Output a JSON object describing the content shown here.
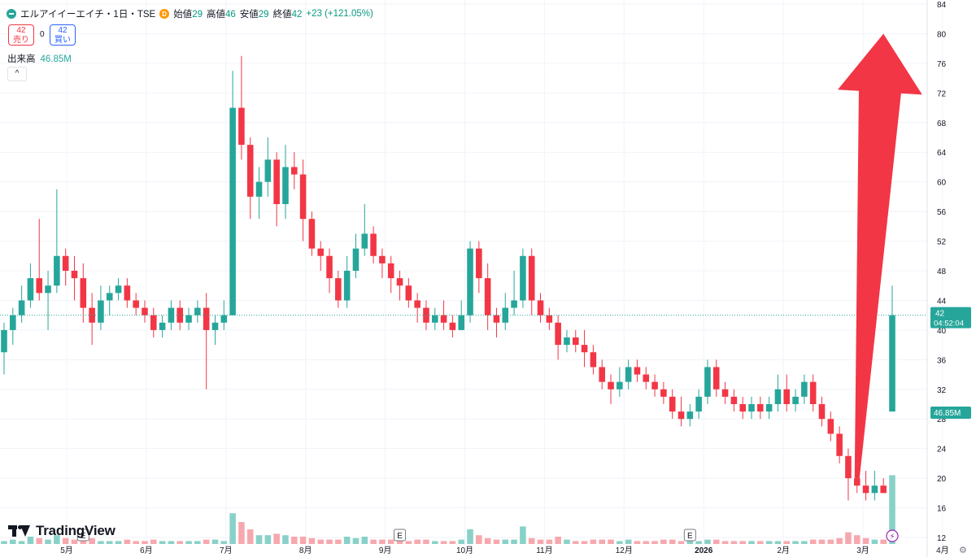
{
  "header": {
    "symbol": "エルアイイーエイチ・1日・TSE",
    "badge": "D",
    "open_label": "始値",
    "open": "29",
    "high_label": "高値",
    "high": "46",
    "low_label": "安値",
    "low": "29",
    "close_label": "終値",
    "close": "42",
    "change": "+23 (+121.05%)"
  },
  "trade": {
    "sell_price": "42",
    "sell_label": "売り",
    "spread": "0",
    "buy_price": "42",
    "buy_label": "買い"
  },
  "volume_legend": {
    "label": "出来高",
    "value": "46.85M"
  },
  "collapse_button": "^",
  "price_label": {
    "value": "42",
    "countdown": "04:52:04"
  },
  "volume_label": "46.85M",
  "branding": "TradingView",
  "colors": {
    "up": "#26a69a",
    "down": "#f23645",
    "up_vol": "#89d1c8",
    "down_vol": "#f7a8ae",
    "arrow": "#f23645"
  },
  "chart_data": {
    "type": "candlestick",
    "y_axis": {
      "ticks": [
        84,
        80,
        76,
        72,
        68,
        64,
        60,
        56,
        52,
        48,
        44,
        40,
        36,
        32,
        28,
        24,
        20,
        16,
        12
      ],
      "min": 12,
      "max": 84
    },
    "x_axis": {
      "ticks": [
        "5月",
        "6月",
        "7月",
        "8月",
        "9月",
        "10月",
        "11月",
        "12月",
        "2026",
        "2月",
        "3月",
        "4月"
      ]
    },
    "last_price": 42,
    "candles": [
      [
        37,
        40,
        41,
        34
      ],
      [
        40,
        42,
        43,
        38
      ],
      [
        42,
        44,
        46,
        41
      ],
      [
        44,
        47,
        49,
        43
      ],
      [
        47,
        45,
        55,
        44
      ],
      [
        45,
        46,
        48,
        40
      ],
      [
        46,
        50,
        59,
        45
      ],
      [
        50,
        48,
        51,
        46
      ],
      [
        48,
        47,
        50,
        44
      ],
      [
        47,
        43,
        49,
        41
      ],
      [
        43,
        41,
        45,
        38
      ],
      [
        41,
        44,
        46,
        40
      ],
      [
        44,
        45,
        46,
        42
      ],
      [
        45,
        46,
        47,
        44
      ],
      [
        46,
        44,
        47,
        43
      ],
      [
        44,
        43,
        45,
        42
      ],
      [
        43,
        42,
        44,
        41
      ],
      [
        42,
        40,
        43,
        39
      ],
      [
        40,
        41,
        42,
        39
      ],
      [
        41,
        43,
        44,
        40
      ],
      [
        43,
        41,
        44,
        40
      ],
      [
        41,
        42,
        43,
        40
      ],
      [
        42,
        43,
        44,
        41
      ],
      [
        43,
        40,
        45,
        32
      ],
      [
        40,
        41,
        42,
        38
      ],
      [
        41,
        42,
        44,
        40
      ],
      [
        42,
        70,
        75,
        42
      ],
      [
        70,
        65,
        77,
        63
      ],
      [
        65,
        58,
        66,
        55
      ],
      [
        58,
        60,
        62,
        55
      ],
      [
        60,
        63,
        66,
        58
      ],
      [
        63,
        57,
        64,
        54
      ],
      [
        57,
        62,
        65,
        55
      ],
      [
        62,
        61,
        64,
        59
      ],
      [
        61,
        55,
        63,
        52
      ],
      [
        55,
        51,
        56,
        50
      ],
      [
        51,
        50,
        52,
        48
      ],
      [
        50,
        47,
        51,
        45
      ],
      [
        47,
        44,
        48,
        43
      ],
      [
        44,
        48,
        50,
        43
      ],
      [
        48,
        51,
        53,
        47
      ],
      [
        51,
        53,
        57,
        50
      ],
      [
        53,
        50,
        54,
        49
      ],
      [
        50,
        49,
        51,
        47
      ],
      [
        49,
        47,
        50,
        45
      ],
      [
        47,
        46,
        48,
        44
      ],
      [
        46,
        44,
        47,
        43
      ],
      [
        44,
        43,
        45,
        41
      ],
      [
        43,
        41,
        44,
        40
      ],
      [
        41,
        42,
        43,
        40
      ],
      [
        42,
        41,
        44,
        40
      ],
      [
        41,
        40,
        42,
        39
      ],
      [
        40,
        42,
        44,
        40
      ],
      [
        42,
        51,
        52,
        41
      ],
      [
        51,
        47,
        52,
        45
      ],
      [
        47,
        42,
        49,
        40
      ],
      [
        42,
        41,
        43,
        39
      ],
      [
        41,
        43,
        45,
        40
      ],
      [
        43,
        44,
        48,
        42
      ],
      [
        44,
        50,
        51,
        43
      ],
      [
        50,
        44,
        51,
        42
      ],
      [
        44,
        42,
        45,
        41
      ],
      [
        42,
        41,
        43,
        40
      ],
      [
        41,
        38,
        42,
        36
      ],
      [
        38,
        39,
        40,
        37
      ],
      [
        39,
        38,
        40,
        37
      ],
      [
        38,
        37,
        40,
        35
      ],
      [
        37,
        35,
        38,
        34
      ],
      [
        35,
        33,
        36,
        32
      ],
      [
        33,
        32,
        34,
        30
      ],
      [
        32,
        33,
        35,
        31
      ],
      [
        33,
        35,
        36,
        32
      ],
      [
        35,
        34,
        36,
        33
      ],
      [
        34,
        33,
        35,
        32
      ],
      [
        33,
        32,
        34,
        31
      ],
      [
        32,
        31,
        33,
        30
      ],
      [
        31,
        29,
        32,
        28
      ],
      [
        29,
        28,
        31,
        27
      ],
      [
        28,
        29,
        30,
        27
      ],
      [
        29,
        31,
        32,
        28
      ],
      [
        31,
        35,
        36,
        30
      ],
      [
        35,
        32,
        36,
        31
      ],
      [
        32,
        31,
        33,
        30
      ],
      [
        31,
        30,
        32,
        29
      ],
      [
        30,
        29,
        31,
        28
      ],
      [
        29,
        30,
        31,
        28
      ],
      [
        30,
        29,
        31,
        28
      ],
      [
        29,
        30,
        31,
        28
      ],
      [
        30,
        32,
        34,
        29
      ],
      [
        32,
        30,
        34,
        29
      ],
      [
        30,
        31,
        32,
        29
      ],
      [
        31,
        33,
        34,
        30
      ],
      [
        33,
        30,
        34,
        29
      ],
      [
        30,
        28,
        31,
        27
      ],
      [
        28,
        26,
        29,
        25
      ],
      [
        26,
        23,
        27,
        22
      ],
      [
        23,
        20,
        24,
        17
      ],
      [
        20,
        19,
        21,
        18
      ],
      [
        19,
        18,
        21,
        17
      ],
      [
        18,
        19,
        21,
        17
      ],
      [
        19,
        18,
        20,
        18
      ],
      [
        29,
        42,
        46,
        29
      ]
    ],
    "volumes_rel": [
      0.2,
      0.3,
      0.2,
      0.5,
      0.4,
      0.3,
      0.6,
      0.4,
      0.3,
      0.3,
      0.4,
      0.2,
      0.2,
      0.2,
      0.3,
      0.2,
      0.2,
      0.3,
      0.2,
      0.2,
      0.2,
      0.2,
      0.2,
      0.3,
      0.3,
      0.2,
      2.1,
      1.5,
      1.0,
      0.6,
      0.6,
      0.7,
      0.6,
      0.5,
      0.5,
      0.4,
      0.3,
      0.3,
      0.3,
      0.5,
      0.4,
      0.5,
      0.3,
      0.3,
      0.3,
      0.2,
      0.2,
      0.3,
      0.3,
      0.2,
      0.2,
      0.2,
      0.3,
      1.0,
      0.6,
      0.4,
      0.3,
      0.3,
      0.3,
      1.2,
      0.4,
      0.3,
      0.3,
      0.5,
      0.3,
      0.2,
      0.2,
      0.3,
      0.3,
      0.3,
      0.2,
      0.3,
      0.2,
      0.2,
      0.2,
      0.3,
      0.3,
      0.2,
      0.2,
      0.2,
      0.3,
      0.3,
      0.2,
      0.2,
      0.2,
      0.2,
      0.2,
      0.2,
      0.2,
      0.2,
      0.2,
      0.2,
      0.3,
      0.3,
      0.3,
      0.4,
      0.8,
      0.6,
      0.4,
      0.3,
      0.3,
      4.7
    ],
    "markers": [
      {
        "type": "earnings",
        "label": "E",
        "candle_index": 9
      },
      {
        "type": "earnings",
        "label": "E",
        "candle_index": 45
      },
      {
        "type": "earnings",
        "label": "E",
        "candle_index": 78
      }
    ],
    "annotation": {
      "type": "arrow",
      "from": [
        97,
        20
      ],
      "to": [
        100,
        80
      ]
    }
  }
}
